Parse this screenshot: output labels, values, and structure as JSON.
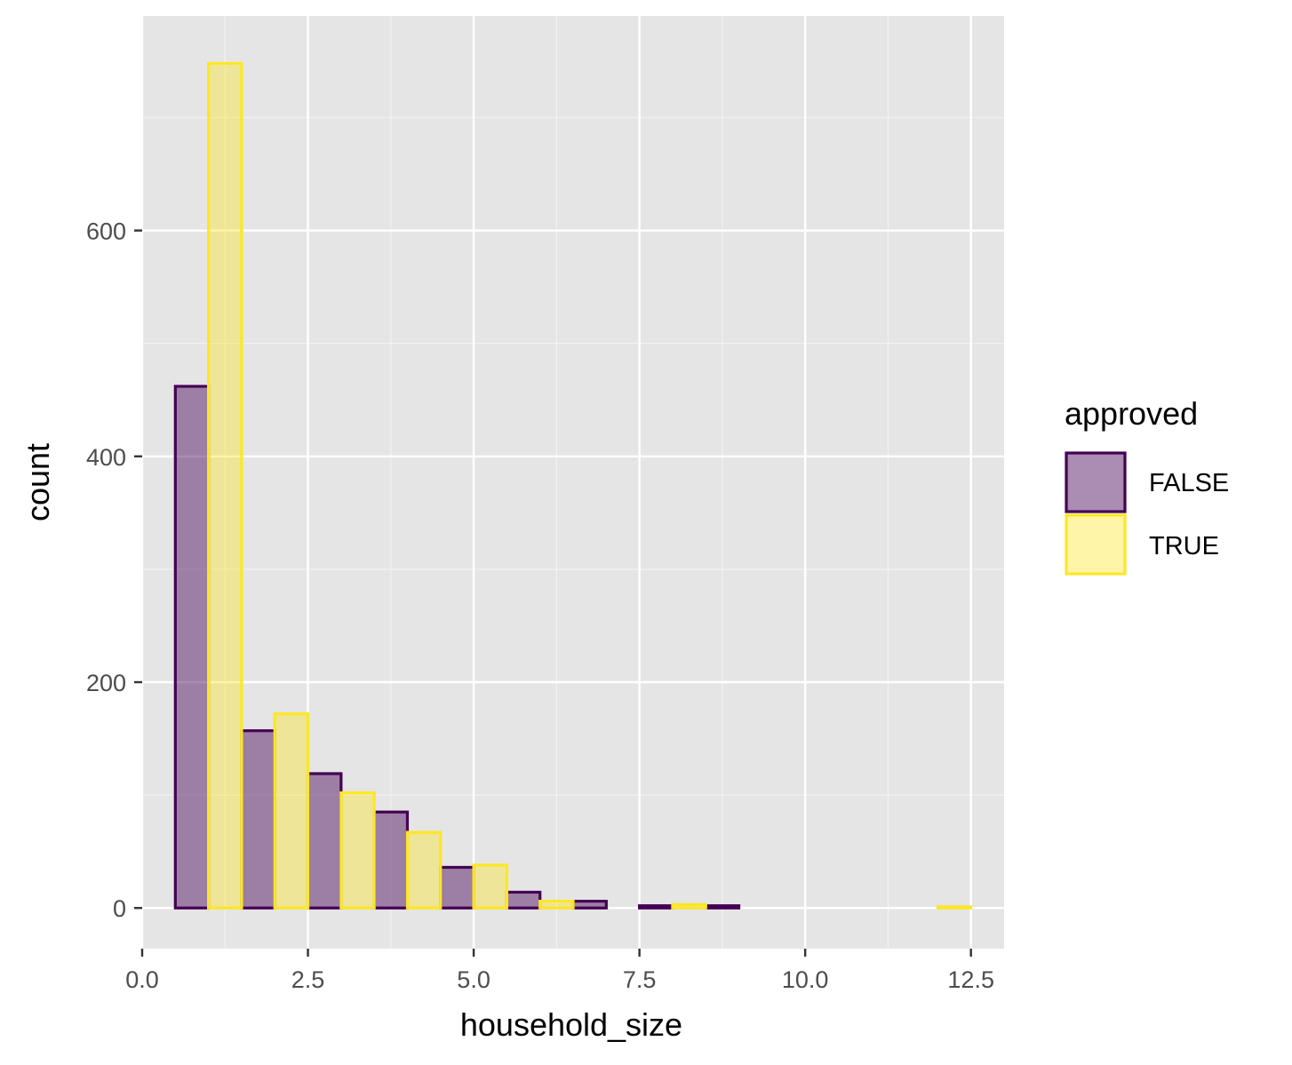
{
  "chart_data": {
    "type": "bar",
    "subtype": "histogram-dodged",
    "xlabel": "household_size",
    "ylabel": "count",
    "xlim": [
      0,
      13
    ],
    "ylim": [
      -36,
      790
    ],
    "x_ticks": [
      0,
      2.5,
      5,
      7.5,
      10,
      12.5
    ],
    "x_tick_labels": [
      "0.0",
      "2.5",
      "5.0",
      "7.5",
      "10.0",
      "12.5"
    ],
    "y_ticks": [
      0,
      200,
      400,
      600
    ],
    "y_tick_labels": [
      "0",
      "200",
      "400",
      "600"
    ],
    "grid": true,
    "legend": {
      "title": "approved",
      "position": "right"
    },
    "bin_width": 1,
    "x": [
      1,
      2,
      3,
      4,
      5,
      6,
      7,
      8,
      9,
      10,
      11,
      12
    ],
    "series": [
      {
        "name": "FALSE",
        "fill": "#440154",
        "stroke": "#440154",
        "values": [
          462,
          157,
          119,
          85,
          36,
          14,
          6,
          2,
          2,
          0,
          0,
          0
        ]
      },
      {
        "name": "TRUE",
        "fill": "#FDE725",
        "stroke": "#FDE725",
        "values": [
          748,
          172,
          102,
          67,
          38,
          6,
          0,
          3,
          0,
          0,
          0,
          1
        ]
      }
    ]
  },
  "colors": {
    "panel_background": "#e5e5e5",
    "grid_major": "#ffffff",
    "grid_minor": "#f2f2f2",
    "tick_mark": "#333333",
    "tick_text": "#4d4d4d"
  }
}
